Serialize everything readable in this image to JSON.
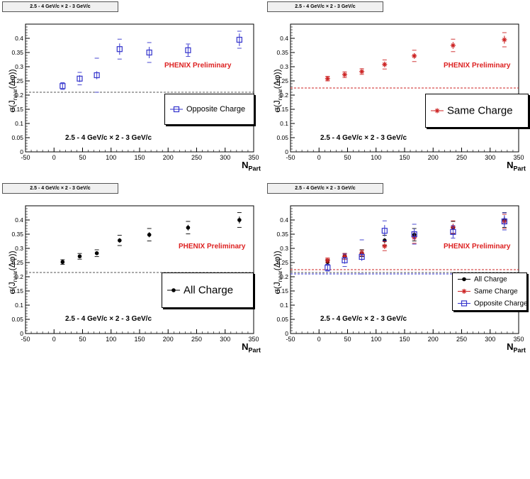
{
  "chart_data": [
    {
      "type": "scatter",
      "tag": "2.5 - 4 GeV/c × 2 - 3 GeV/c",
      "xlabel": "N",
      "xlabel_sub": "Part",
      "ylabel": "σ(J_near(Δφ))",
      "xlim": [
        -50,
        350
      ],
      "ylim": [
        0,
        0.45
      ],
      "xticks": [
        "-50",
        "0",
        "50",
        "100",
        "150",
        "200",
        "250",
        "300",
        "350"
      ],
      "yticks": [
        "0",
        "0.05",
        "0.1",
        "0.15",
        "0.2",
        "0.25",
        "0.3",
        "0.35",
        "0.4"
      ],
      "annotation": "PHENIX Preliminary",
      "kinematics": "2.5 - 4 GeV/c × 2 - 3 GeV/c",
      "reference_line": 0.21,
      "legend_placement": "right",
      "series": [
        {
          "name": "Opposite Charge",
          "color": "#3333cc",
          "marker": "open-square",
          "x": [
            15,
            45,
            75,
            115,
            167,
            235,
            325
          ],
          "y": [
            0.232,
            0.258,
            0.27,
            0.362,
            0.35,
            0.358,
            0.395
          ],
          "yerr": [
            0.008,
            0.012,
            0.014,
            0.02,
            0.02,
            0.02,
            0.022
          ],
          "syserr": [
            0.012,
            0.022,
            0.06,
            0.035,
            0.035,
            0.022,
            0.03
          ]
        }
      ]
    },
    {
      "type": "scatter",
      "tag": "2.5 - 4 GeV/c × 2 - 3 GeV/c",
      "xlabel": "N",
      "xlabel_sub": "Part",
      "ylabel": "σ(J_near(Δφ))",
      "xlim": [
        -50,
        350
      ],
      "ylim": [
        0,
        0.45
      ],
      "xticks": [
        "-50",
        "0",
        "50",
        "100",
        "150",
        "200",
        "250",
        "300",
        "350"
      ],
      "yticks": [
        "0",
        "0.05",
        "0.1",
        "0.15",
        "0.2",
        "0.25",
        "0.3",
        "0.35",
        "0.4"
      ],
      "annotation": "PHENIX Preliminary",
      "kinematics": "2.5 - 4 GeV/c × 2 - 3 GeV/c",
      "reference_line": 0.225,
      "legend_placement": "right",
      "series": [
        {
          "name": "Same Charge",
          "color": "#cc2222",
          "marker": "star",
          "x": [
            15,
            45,
            75,
            115,
            167,
            235,
            325
          ],
          "y": [
            0.258,
            0.272,
            0.283,
            0.308,
            0.338,
            0.375,
            0.395
          ],
          "yerr": [
            0.005,
            0.006,
            0.006,
            0.01,
            0.01,
            0.012,
            0.014
          ],
          "syserr": [
            0.008,
            0.01,
            0.01,
            0.016,
            0.02,
            0.022,
            0.025
          ]
        }
      ]
    },
    {
      "type": "scatter",
      "tag": "2.5 - 4 GeV/c × 2 - 3 GeV/c",
      "xlabel": "N",
      "xlabel_sub": "Part",
      "ylabel": "σ(J_near(Δφ))",
      "xlim": [
        -50,
        350
      ],
      "ylim": [
        0,
        0.45
      ],
      "xticks": [
        "-50",
        "0",
        "50",
        "100",
        "150",
        "200",
        "250",
        "300",
        "350"
      ],
      "yticks": [
        "0",
        "0.05",
        "0.1",
        "0.15",
        "0.2",
        "0.25",
        "0.3",
        "0.35",
        "0.4"
      ],
      "annotation": "PHENIX Preliminary",
      "kinematics": "2.5 - 4 GeV/c × 2 - 3 GeV/c",
      "reference_line": 0.215,
      "legend_placement": "right",
      "series": [
        {
          "name": "All Charge",
          "color": "#000000",
          "marker": "dot",
          "x": [
            15,
            45,
            75,
            115,
            167,
            235,
            325
          ],
          "y": [
            0.252,
            0.272,
            0.283,
            0.328,
            0.348,
            0.373,
            0.4
          ],
          "yerr": [
            0.004,
            0.005,
            0.005,
            0.008,
            0.009,
            0.01,
            0.012
          ],
          "syserr": [
            0.008,
            0.01,
            0.012,
            0.018,
            0.022,
            0.022,
            0.026
          ]
        }
      ]
    },
    {
      "type": "scatter",
      "tag": "2.5 - 4 GeV/c × 2 - 3 GeV/c",
      "xlabel": "N",
      "xlabel_sub": "Part",
      "ylabel": "σ(J_near(Δφ))",
      "xlim": [
        -50,
        350
      ],
      "ylim": [
        0,
        0.45
      ],
      "xticks": [
        "-50",
        "0",
        "50",
        "100",
        "150",
        "200",
        "250",
        "300",
        "350"
      ],
      "yticks": [
        "0",
        "0.05",
        "0.1",
        "0.15",
        "0.2",
        "0.25",
        "0.3",
        "0.35",
        "0.4"
      ],
      "annotation": "PHENIX Preliminary",
      "kinematics": "2.5 - 4 GeV/c × 2 - 3 GeV/c",
      "reference_lines": [
        {
          "value": 0.215,
          "color": "#555555"
        },
        {
          "value": 0.225,
          "color": "#cc2222"
        },
        {
          "value": 0.21,
          "color": "#3333cc"
        }
      ],
      "legend_placement": "right",
      "series": [
        {
          "name": "All Charge",
          "color": "#000000",
          "marker": "dot",
          "x": [
            15,
            45,
            75,
            115,
            167,
            235,
            325
          ],
          "y": [
            0.252,
            0.272,
            0.283,
            0.328,
            0.348,
            0.373,
            0.4
          ],
          "yerr": [
            0.004,
            0.005,
            0.005,
            0.008,
            0.009,
            0.01,
            0.012
          ],
          "syserr": [
            0.008,
            0.01,
            0.012,
            0.018,
            0.022,
            0.022,
            0.026
          ]
        },
        {
          "name": "Same Charge",
          "color": "#cc2222",
          "marker": "star",
          "x": [
            15,
            45,
            75,
            115,
            167,
            235,
            325
          ],
          "y": [
            0.258,
            0.272,
            0.283,
            0.308,
            0.338,
            0.375,
            0.395
          ],
          "yerr": [
            0.005,
            0.006,
            0.006,
            0.01,
            0.01,
            0.012,
            0.014
          ],
          "syserr": [
            0.008,
            0.01,
            0.01,
            0.016,
            0.02,
            0.022,
            0.025
          ]
        },
        {
          "name": "Opposite Charge",
          "color": "#3333cc",
          "marker": "open-square",
          "x": [
            15,
            45,
            75,
            115,
            167,
            235,
            325
          ],
          "y": [
            0.232,
            0.258,
            0.27,
            0.362,
            0.35,
            0.358,
            0.395
          ],
          "yerr": [
            0.008,
            0.012,
            0.014,
            0.02,
            0.02,
            0.02,
            0.022
          ],
          "syserr": [
            0.012,
            0.022,
            0.06,
            0.035,
            0.035,
            0.022,
            0.03
          ]
        }
      ]
    }
  ]
}
